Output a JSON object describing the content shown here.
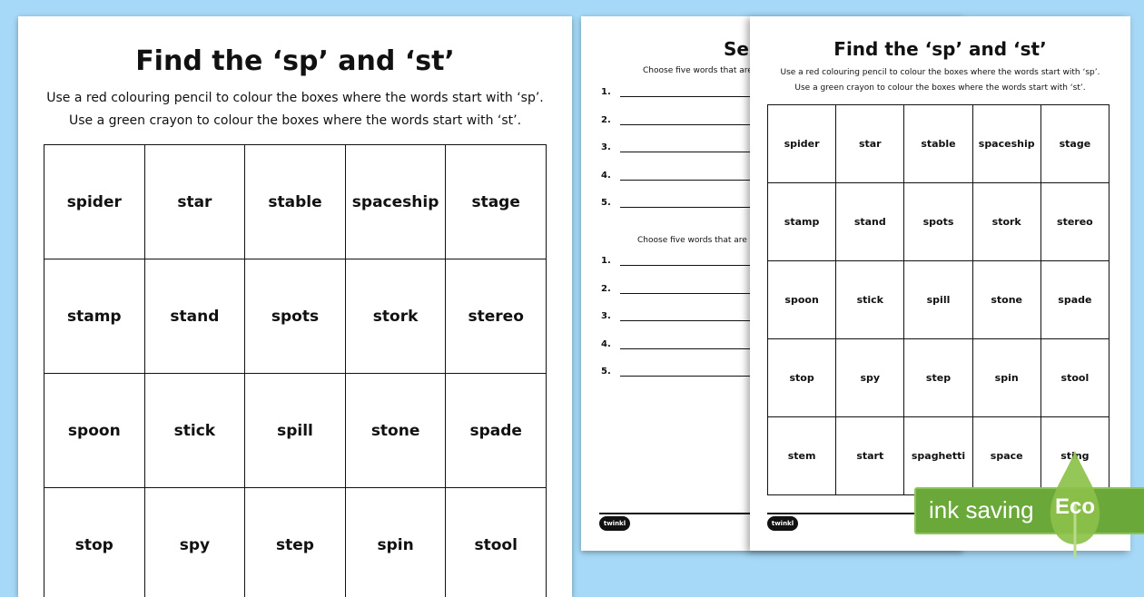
{
  "worksheet_main": {
    "title": "Find the ‘sp’ and ‘st’",
    "instruction_1": "Use a red colouring pencil to colour the boxes where the words start with ‘sp’.",
    "instruction_2": "Use a green crayon to colour the boxes where the words start with ‘st’.",
    "words": [
      [
        "spider",
        "star",
        "stable",
        "spaceship",
        "stage"
      ],
      [
        "stamp",
        "stand",
        "spots",
        "stork",
        "stereo"
      ],
      [
        "spoon",
        "stick",
        "spill",
        "stone",
        "spade"
      ],
      [
        "stop",
        "spy",
        "step",
        "spin",
        "stool"
      ]
    ]
  },
  "worksheet_sentences": {
    "title_partial": "Se",
    "instruction_1_partial": "Choose five words that are",
    "instruction_2_partial": "Choose five words that are g",
    "numbers": [
      "1.",
      "2.",
      "3.",
      "4.",
      "5."
    ],
    "logo": "twinkl"
  },
  "worksheet_front": {
    "title": "Find the ‘sp’ and ‘st’",
    "instruction_1": "Use a red colouring pencil to colour the boxes where the words start with ‘sp’.",
    "instruction_2": "Use a green crayon to colour the boxes where the words start with ‘st’.",
    "words": [
      [
        "spider",
        "star",
        "stable",
        "spaceship",
        "stage"
      ],
      [
        "stamp",
        "stand",
        "spots",
        "stork",
        "stereo"
      ],
      [
        "spoon",
        "stick",
        "spill",
        "stone",
        "spade"
      ],
      [
        "stop",
        "spy",
        "step",
        "spin",
        "stool"
      ],
      [
        "stem",
        "start",
        "spaghetti",
        "space",
        "sting"
      ]
    ],
    "logo": "twinkl"
  },
  "eco_badge": {
    "label": "ink saving",
    "leaf_label": "Eco",
    "color": "#6aa83a"
  },
  "background_color": "#a6d9f7"
}
